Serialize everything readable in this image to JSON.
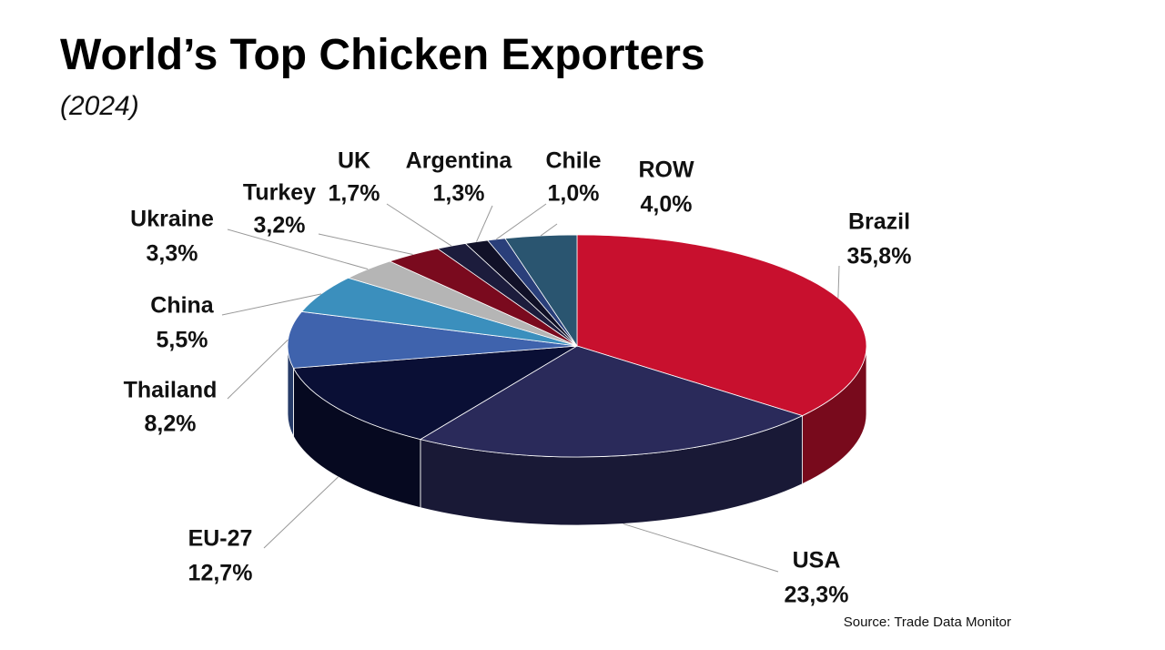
{
  "chart_data": {
    "type": "pie3d",
    "title": "World’s Top Chicken Exporters",
    "subtitle": "(2024)",
    "source": "Source: Trade Data Monitor",
    "categories": [
      "Brazil",
      "USA",
      "EU-27",
      "Thailand",
      "China",
      "Ukraine",
      "Turkey",
      "UK",
      "Argentina",
      "Chile",
      "ROW"
    ],
    "values": [
      35.8,
      23.3,
      12.7,
      8.2,
      5.5,
      3.3,
      3.2,
      1.7,
      1.3,
      1.0,
      4.0
    ],
    "value_labels": [
      "35,8%",
      "23,3%",
      "12,7%",
      "8,2%",
      "5,5%",
      "3,3%",
      "3,2%",
      "1,7%",
      "1,3%",
      "1,0%",
      "4,0%"
    ],
    "colors": [
      "#c8102e",
      "#2a2a5a",
      "#0a0f35",
      "#3f63ad",
      "#3b8fbd",
      "#b5b5b5",
      "#7a0a1e",
      "#1c1c3c",
      "#111128",
      "#2a3f7a",
      "#2a5570"
    ]
  }
}
